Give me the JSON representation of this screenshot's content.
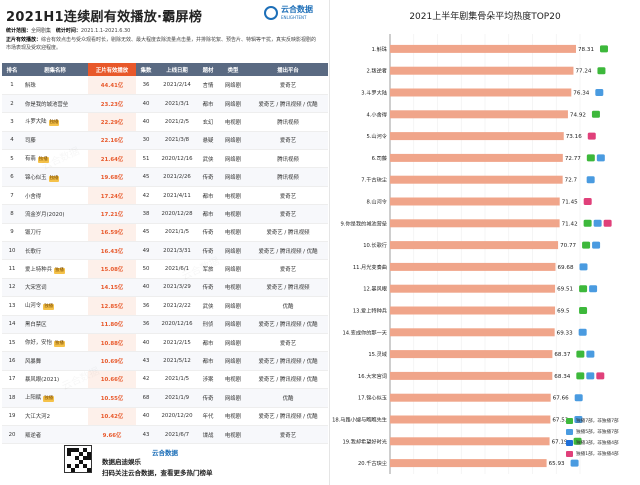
{
  "left": {
    "title": "2021H1连续剧有效播放·霸屏榜",
    "brand": "云合数据",
    "brand_en": "ENLIGHTENT",
    "meta": [
      {
        "k": "统计范围：",
        "v": "全网剧集",
        "k2": "统计时间：",
        "v2": "2021.1.1-2021.6.30"
      },
      {
        "k": "正片有效播放：",
        "v": "综合有效点击与受众观看时长，剔除无效、最大程度去除流量点击量，并排除花絮、预告片、特辑等干扰，真实反映影视剧的",
        "k2": "",
        "v2": ""
      },
      {
        "k": "",
        "v": "市场表现及受欢迎程度。",
        "k2": "",
        "v2": ""
      }
    ],
    "columns": [
      "排名",
      "剧集名称",
      "正片有效播放",
      "集数",
      "上线日期",
      "题材",
      "类型",
      "播出平台"
    ],
    "rows": [
      {
        "rank": "1",
        "name": "斛珠",
        "tag": "",
        "value": "44.41亿",
        "eps": "36",
        "date": "2021/2/14",
        "genre": "言情",
        "type": "网络剧",
        "platform": "爱奇艺"
      },
      {
        "rank": "2",
        "name": "你是我的城池营垒",
        "tag": "",
        "value": "23.23亿",
        "eps": "40",
        "date": "2021/3/1",
        "genre": "都市",
        "type": "网络剧",
        "platform": "爱奇艺 / 腾讯视频 / 优酷"
      },
      {
        "rank": "3",
        "name": "斗罗大陆",
        "tag": "独播",
        "value": "22.29亿",
        "eps": "40",
        "date": "2021/2/5",
        "genre": "玄幻",
        "type": "电视剧",
        "platform": "腾讯视频"
      },
      {
        "rank": "4",
        "name": "司藤",
        "tag": "",
        "value": "22.16亿",
        "eps": "30",
        "date": "2021/3/8",
        "genre": "悬疑",
        "type": "网络剧",
        "platform": "爱奇艺"
      },
      {
        "rank": "5",
        "name": "有翡",
        "tag": "独播",
        "value": "21.64亿",
        "eps": "51",
        "date": "2020/12/16",
        "genre": "武侠",
        "type": "网络剧",
        "platform": "腾讯视频"
      },
      {
        "rank": "6",
        "name": "锦心似玉",
        "tag": "独播",
        "value": "19.68亿",
        "eps": "45",
        "date": "2021/2/26",
        "genre": "传奇",
        "type": "网络剧",
        "platform": "腾讯视频"
      },
      {
        "rank": "7",
        "name": "小舍得",
        "tag": "",
        "value": "17.24亿",
        "eps": "42",
        "date": "2021/4/11",
        "genre": "都市",
        "type": "电视剧",
        "platform": "爱奇艺"
      },
      {
        "rank": "8",
        "name": "流金岁月(2020)",
        "tag": "",
        "value": "17.21亿",
        "eps": "38",
        "date": "2020/12/28",
        "genre": "都市",
        "type": "电视剧",
        "platform": "爱奇艺"
      },
      {
        "rank": "9",
        "name": "锻刀行",
        "tag": "",
        "value": "16.59亿",
        "eps": "45",
        "date": "2021/1/5",
        "genre": "传奇",
        "type": "电视剧",
        "platform": "爱奇艺 / 腾讯视频"
      },
      {
        "rank": "10",
        "name": "长歌行",
        "tag": "",
        "value": "16.43亿",
        "eps": "49",
        "date": "2021/3/31",
        "genre": "传奇",
        "type": "网络剧",
        "platform": "爱奇艺 / 腾讯视频 / 优酷"
      },
      {
        "rank": "11",
        "name": "爱上特种兵",
        "tag": "独播",
        "value": "15.08亿",
        "eps": "50",
        "date": "2021/6/1",
        "genre": "军旅",
        "type": "网络剧",
        "platform": "爱奇艺"
      },
      {
        "rank": "12",
        "name": "大宋宫词",
        "tag": "",
        "value": "14.15亿",
        "eps": "40",
        "date": "2021/3/29",
        "genre": "传奇",
        "type": "电视剧",
        "platform": "爱奇艺 / 腾讯视频"
      },
      {
        "rank": "13",
        "name": "山河令",
        "tag": "独播",
        "value": "12.85亿",
        "eps": "36",
        "date": "2021/2/22",
        "genre": "武侠",
        "type": "网络剧",
        "platform": "优酷"
      },
      {
        "rank": "14",
        "name": "黑白禁区",
        "tag": "",
        "value": "11.80亿",
        "eps": "36",
        "date": "2020/12/16",
        "genre": "刑侦",
        "type": "网络剧",
        "platform": "爱奇艺 / 腾讯视频 / 优酷"
      },
      {
        "rank": "15",
        "name": "你好，安怡",
        "tag": "独播",
        "value": "10.88亿",
        "eps": "40",
        "date": "2021/2/15",
        "genre": "都市",
        "type": "网络剧",
        "platform": "爱奇艺"
      },
      {
        "rank": "16",
        "name": "风暴舞",
        "tag": "",
        "value": "10.69亿",
        "eps": "43",
        "date": "2021/5/12",
        "genre": "都市",
        "type": "网络剧",
        "platform": "爱奇艺 / 腾讯视频 / 优酷"
      },
      {
        "rank": "17",
        "name": "暴风眼(2021)",
        "tag": "",
        "value": "10.66亿",
        "eps": "42",
        "date": "2021/1/5",
        "genre": "涉案",
        "type": "电视剧",
        "platform": "爱奇艺 / 腾讯视频 / 优酷"
      },
      {
        "rank": "18",
        "name": "上阳赋",
        "tag": "独播",
        "value": "10.55亿",
        "eps": "68",
        "date": "2021/1/9",
        "genre": "传奇",
        "type": "网络剧",
        "platform": "优酷"
      },
      {
        "rank": "19",
        "name": "大江大河2",
        "tag": "",
        "value": "10.42亿",
        "eps": "40",
        "date": "2020/12/20",
        "genre": "年代",
        "type": "电视剧",
        "platform": "爱奇艺 / 腾讯视频 / 优酷"
      },
      {
        "rank": "20",
        "name": "叛逆者",
        "tag": "",
        "value": "9.66亿",
        "eps": "43",
        "date": "2021/6/7",
        "genre": "谍战",
        "type": "电视剧",
        "platform": "爱奇艺"
      }
    ],
    "footer": {
      "brand": "云合数据",
      "line1": "数据启迪娱乐",
      "line2": "扫码关注云合数据，查看更多热门榜单"
    }
  },
  "chart_data": {
    "type": "bar",
    "title": "2021上半年剧集骨朵平均热度TOP20",
    "categories": [
      "1.斛珠",
      "2.叛逆者",
      "3.斗罗大陆",
      "4.小舍得",
      "5.山河令",
      "6.司藤",
      "7.千古玦尘",
      "8.山河令",
      "9.你是我的城池营垒",
      "10.长歌行",
      "11.月光变奏曲",
      "12.暴风眼",
      "13.爱上特种兵",
      "14.变成你的那一天",
      "15.灵域",
      "16.大宋宫词",
      "17.锦心似玉",
      "18.马路小嫂与瞧瞧先生",
      "19.我却希望好时光",
      "20.千古玦尘"
    ],
    "values": [
      78.31,
      77.24,
      76.34,
      74.92,
      73.16,
      72.77,
      72.7,
      71.45,
      71.42,
      70.77,
      69.68,
      69.51,
      69.5,
      69.33,
      68.37,
      68.34,
      67.66,
      67.53,
      67.19,
      65.93
    ],
    "platforms": [
      [
        "iqiyi"
      ],
      [
        "iqiyi"
      ],
      [
        "tencent"
      ],
      [
        "iqiyi"
      ],
      [
        "youku"
      ],
      [
        "iqiyi",
        "tencent"
      ],
      [
        "tencent"
      ],
      [
        "youku"
      ],
      [
        "iqiyi",
        "tencent",
        "youku"
      ],
      [
        "iqiyi",
        "tencent"
      ],
      [
        "tencent"
      ],
      [
        "iqiyi",
        "tencent"
      ],
      [
        "iqiyi"
      ],
      [
        "tencent"
      ],
      [
        "iqiyi",
        "tencent"
      ],
      [
        "iqiyi",
        "tencent",
        "youku"
      ],
      [
        "tencent"
      ],
      [
        "tencent"
      ],
      [
        "iqiyi"
      ],
      [
        "tencent"
      ]
    ],
    "legend": [
      {
        "label": "独播7部，非独播7部",
        "color": "#3db83b"
      },
      {
        "label": "独播5部，非独播7部",
        "color": "#4a9be0"
      },
      {
        "label": "独播3部，非独播4部",
        "color": "#1e6ed8"
      },
      {
        "label": "独播1部，非独播4部",
        "color": "#e0407a"
      }
    ],
    "xlim": [
      0,
      80
    ],
    "grid": true,
    "legend_position": "bottom-right"
  }
}
